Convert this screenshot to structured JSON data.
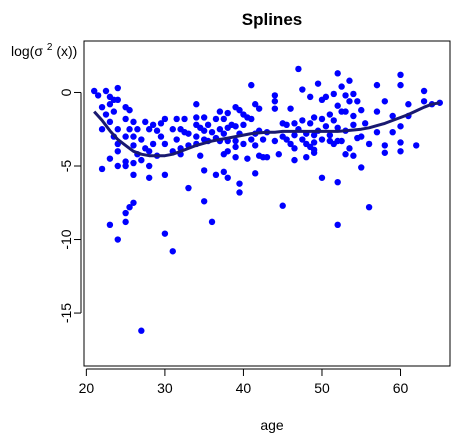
{
  "chart_data": {
    "type": "scatter",
    "title": "Splines",
    "xlabel": "age",
    "ylabel": {
      "prefix": "log(σ",
      "superscript": "2",
      "suffix": "(x))"
    },
    "xlim": [
      19.7,
      66.3
    ],
    "ylim": [
      -18.6,
      3.5
    ],
    "x_ticks": [
      20,
      30,
      40,
      50,
      60
    ],
    "y_ticks": [
      0,
      -5,
      -10,
      -15
    ],
    "grid": false,
    "points_color": "#0000ff",
    "line_color": "#191970",
    "series": [
      {
        "type": "scatter",
        "points": [
          [
            21,
            0.1
          ],
          [
            21.5,
            -0.2
          ],
          [
            22,
            -1
          ],
          [
            22,
            -2.5
          ],
          [
            22,
            -5.2
          ],
          [
            22.5,
            0.1
          ],
          [
            22.5,
            -1.5
          ],
          [
            23,
            -0.3
          ],
          [
            23,
            -0.8
          ],
          [
            23,
            -2
          ],
          [
            23,
            -4.5
          ],
          [
            23,
            -9
          ],
          [
            23.5,
            -0.5
          ],
          [
            23.5,
            -1.3
          ],
          [
            23.5,
            -3
          ],
          [
            24,
            0.3
          ],
          [
            24,
            -0.5
          ],
          [
            24,
            -2.5
          ],
          [
            24,
            -3.5
          ],
          [
            24,
            -4
          ],
          [
            24,
            -5
          ],
          [
            24,
            -10
          ],
          [
            25,
            -1
          ],
          [
            25,
            -1.8
          ],
          [
            25,
            -3
          ],
          [
            25,
            -4.7
          ],
          [
            25,
            -5
          ],
          [
            25,
            -8.2
          ],
          [
            25,
            -8.8
          ],
          [
            25.5,
            -1.2
          ],
          [
            25.5,
            -2.5
          ],
          [
            25.5,
            -7.8
          ],
          [
            26,
            -2
          ],
          [
            26,
            -3
          ],
          [
            26,
            -3.6
          ],
          [
            26,
            -4.8
          ],
          [
            26,
            -5.6
          ],
          [
            26,
            -7.5
          ],
          [
            26.5,
            -2.5
          ],
          [
            26.5,
            -4.2
          ],
          [
            27,
            -3.2
          ],
          [
            27,
            -4.6
          ],
          [
            27,
            -16.2
          ],
          [
            27.5,
            -2
          ],
          [
            27.5,
            -3.8
          ],
          [
            28,
            -2.5
          ],
          [
            28,
            -4
          ],
          [
            28,
            -5
          ],
          [
            28,
            -5.8
          ],
          [
            28.5,
            -2.2
          ],
          [
            28.5,
            -3.5
          ],
          [
            29,
            -2.6
          ],
          [
            29,
            -4.3
          ],
          [
            29.5,
            -2.1
          ],
          [
            29.5,
            -3
          ],
          [
            30,
            -1.8
          ],
          [
            30,
            -3.5
          ],
          [
            30,
            -5.6
          ],
          [
            30,
            -9.6
          ],
          [
            31,
            -2.5
          ],
          [
            31,
            -4
          ],
          [
            31,
            -10.8
          ],
          [
            31.5,
            -1.8
          ],
          [
            31.5,
            -3.2
          ],
          [
            32,
            -2.5
          ],
          [
            32,
            -3.8
          ],
          [
            32,
            -4.2
          ],
          [
            32.5,
            -1.8
          ],
          [
            32.5,
            -2.7
          ],
          [
            33,
            -2.8
          ],
          [
            33,
            -3.6
          ],
          [
            33,
            -6.5
          ],
          [
            34,
            -0.8
          ],
          [
            34,
            -1.7
          ],
          [
            34,
            -2.2
          ],
          [
            34,
            -3
          ],
          [
            34,
            -3.5
          ],
          [
            34.5,
            -2.4
          ],
          [
            34.5,
            -4.3
          ],
          [
            35,
            -1.7
          ],
          [
            35,
            -2.6
          ],
          [
            35,
            -3.2
          ],
          [
            35,
            -5.3
          ],
          [
            35,
            -7.4
          ],
          [
            35.5,
            -2.2
          ],
          [
            35.5,
            -3.3
          ],
          [
            36,
            -2.7
          ],
          [
            36,
            -8.8
          ],
          [
            36.5,
            -1.8
          ],
          [
            36.5,
            -3.1
          ],
          [
            36.5,
            -5.6
          ],
          [
            37,
            -1.3
          ],
          [
            37,
            -2.5
          ],
          [
            37,
            -3.3
          ],
          [
            37.5,
            -1.8
          ],
          [
            37.5,
            -2.8
          ],
          [
            37.5,
            -4.2
          ],
          [
            37.5,
            -5.4
          ],
          [
            38,
            -1.4
          ],
          [
            38,
            -2.4
          ],
          [
            38,
            -3.3
          ],
          [
            38,
            -4
          ],
          [
            38,
            -5.8
          ],
          [
            38.5,
            -2.2
          ],
          [
            39,
            -1
          ],
          [
            39,
            -2.3
          ],
          [
            39,
            -3.3
          ],
          [
            39,
            -3.7
          ],
          [
            39,
            -4.4
          ],
          [
            39.5,
            -1.2
          ],
          [
            39.5,
            -2.8
          ],
          [
            39.5,
            -6.2
          ],
          [
            39.5,
            -6.8
          ],
          [
            40,
            -1.5
          ],
          [
            40,
            -2.2
          ],
          [
            40,
            -3.5
          ],
          [
            40.5,
            -1.7
          ],
          [
            40.5,
            -4.5
          ],
          [
            41,
            0.5
          ],
          [
            41,
            -1.8
          ],
          [
            41,
            -3.2
          ],
          [
            41.5,
            -0.8
          ],
          [
            41.5,
            -2.8
          ],
          [
            41.5,
            -3.6
          ],
          [
            41.5,
            -5.5
          ],
          [
            42,
            -1.1
          ],
          [
            42,
            -2.6
          ],
          [
            42,
            -4.3
          ],
          [
            42.5,
            -3.2
          ],
          [
            42.5,
            -4.4
          ],
          [
            43,
            -2.7
          ],
          [
            43,
            -4.4
          ],
          [
            44,
            -0.2
          ],
          [
            44,
            -0.6
          ],
          [
            44,
            -1.1
          ],
          [
            44,
            -3.3
          ],
          [
            44.5,
            -4.2
          ],
          [
            45,
            -2.1
          ],
          [
            45,
            -3
          ],
          [
            45,
            -7.7
          ],
          [
            45.5,
            -2.2
          ],
          [
            45.5,
            -3.2
          ],
          [
            46,
            -1.1
          ],
          [
            46,
            -3.5
          ],
          [
            46.5,
            -2.1
          ],
          [
            46.5,
            -2.9
          ],
          [
            46.5,
            -3.8
          ],
          [
            46.5,
            -4.6
          ],
          [
            47,
            1.6
          ],
          [
            47,
            -2.5
          ],
          [
            47.5,
            0.2
          ],
          [
            47.5,
            -1.9
          ],
          [
            47.5,
            -3.2
          ],
          [
            48,
            -2.8
          ],
          [
            48,
            -3.5
          ],
          [
            48,
            -4.4
          ],
          [
            48.5,
            -0.3
          ],
          [
            48.5,
            -2.1
          ],
          [
            48.5,
            -3.7
          ],
          [
            49,
            -1.7
          ],
          [
            49,
            -2.9
          ],
          [
            49,
            -3.4
          ],
          [
            49,
            -3.9
          ],
          [
            49,
            -4.1
          ],
          [
            49.5,
            0.6
          ],
          [
            49.5,
            -2.6
          ],
          [
            50,
            -0.5
          ],
          [
            50,
            -1.8
          ],
          [
            50,
            -3.2
          ],
          [
            50,
            -5.8
          ],
          [
            50.5,
            -0.3
          ],
          [
            50.5,
            -2.3
          ],
          [
            51,
            -1.5
          ],
          [
            51,
            -2.9
          ],
          [
            51,
            -3.3
          ],
          [
            51.5,
            -0.1
          ],
          [
            51.5,
            -1.9
          ],
          [
            51.5,
            -3.5
          ],
          [
            52,
            1.3
          ],
          [
            52,
            -0.9
          ],
          [
            52,
            -2.4
          ],
          [
            52,
            -3.3
          ],
          [
            52,
            -6.1
          ],
          [
            52,
            -9
          ],
          [
            52.5,
            0.4
          ],
          [
            52.5,
            -1.3
          ],
          [
            52.5,
            -3.3
          ],
          [
            53,
            -0.2
          ],
          [
            53,
            -1.3
          ],
          [
            53,
            -2.6
          ],
          [
            53,
            -4.2
          ],
          [
            53.5,
            0.8
          ],
          [
            53.5,
            -0.6
          ],
          [
            53.5,
            -3.8
          ],
          [
            54,
            -0.1
          ],
          [
            54,
            -1.6
          ],
          [
            54,
            -2.2
          ],
          [
            54,
            -4.3
          ],
          [
            54.5,
            -0.6
          ],
          [
            54.5,
            -3.1
          ],
          [
            55,
            -1.2
          ],
          [
            55,
            -3
          ],
          [
            55,
            -5.1
          ],
          [
            55.5,
            -2.1
          ],
          [
            56,
            -3.5
          ],
          [
            56,
            -7.8
          ],
          [
            57,
            0.5
          ],
          [
            57,
            -1.3
          ],
          [
            57,
            -2.7
          ],
          [
            58,
            -0.6
          ],
          [
            58,
            -3.6
          ],
          [
            58,
            -4.1
          ],
          [
            59,
            -1.6
          ],
          [
            59,
            -2.7
          ],
          [
            60,
            1.2
          ],
          [
            60,
            0.5
          ],
          [
            60,
            -2.3
          ],
          [
            60,
            -3.4
          ],
          [
            60,
            -4
          ],
          [
            61,
            -0.8
          ],
          [
            61,
            -1.6
          ],
          [
            62,
            -3.6
          ],
          [
            63,
            0.1
          ],
          [
            63,
            -0.6
          ],
          [
            64,
            -0.8
          ],
          [
            65,
            -0.7
          ]
        ]
      },
      {
        "type": "line",
        "points": [
          [
            21,
            -1.3
          ],
          [
            22,
            -1.9
          ],
          [
            23,
            -2.6
          ],
          [
            24,
            -3.2
          ],
          [
            25,
            -3.6
          ],
          [
            26,
            -4
          ],
          [
            27,
            -4.2
          ],
          [
            28,
            -4.3
          ],
          [
            29,
            -4.3
          ],
          [
            30,
            -4.3
          ],
          [
            31,
            -4.2
          ],
          [
            32,
            -4
          ],
          [
            33,
            -3.8
          ],
          [
            34,
            -3.6
          ],
          [
            35,
            -3.45
          ],
          [
            36,
            -3.3
          ],
          [
            37,
            -3.2
          ],
          [
            38,
            -3.1
          ],
          [
            39,
            -3
          ],
          [
            40,
            -2.9
          ],
          [
            41,
            -2.8
          ],
          [
            42,
            -2.75
          ],
          [
            43,
            -2.7
          ],
          [
            44,
            -2.7
          ],
          [
            45,
            -2.65
          ],
          [
            46,
            -2.65
          ],
          [
            47,
            -2.65
          ],
          [
            48,
            -2.65
          ],
          [
            49,
            -2.65
          ],
          [
            50,
            -2.65
          ],
          [
            51,
            -2.65
          ],
          [
            52,
            -2.65
          ],
          [
            53,
            -2.6
          ],
          [
            54,
            -2.55
          ],
          [
            55,
            -2.5
          ],
          [
            56,
            -2.4
          ],
          [
            57,
            -2.25
          ],
          [
            58,
            -2.1
          ],
          [
            59,
            -1.9
          ],
          [
            60,
            -1.7
          ],
          [
            61,
            -1.5
          ],
          [
            62,
            -1.25
          ],
          [
            63,
            -1
          ],
          [
            64,
            -0.8
          ],
          [
            65,
            -0.7
          ]
        ]
      }
    ]
  }
}
